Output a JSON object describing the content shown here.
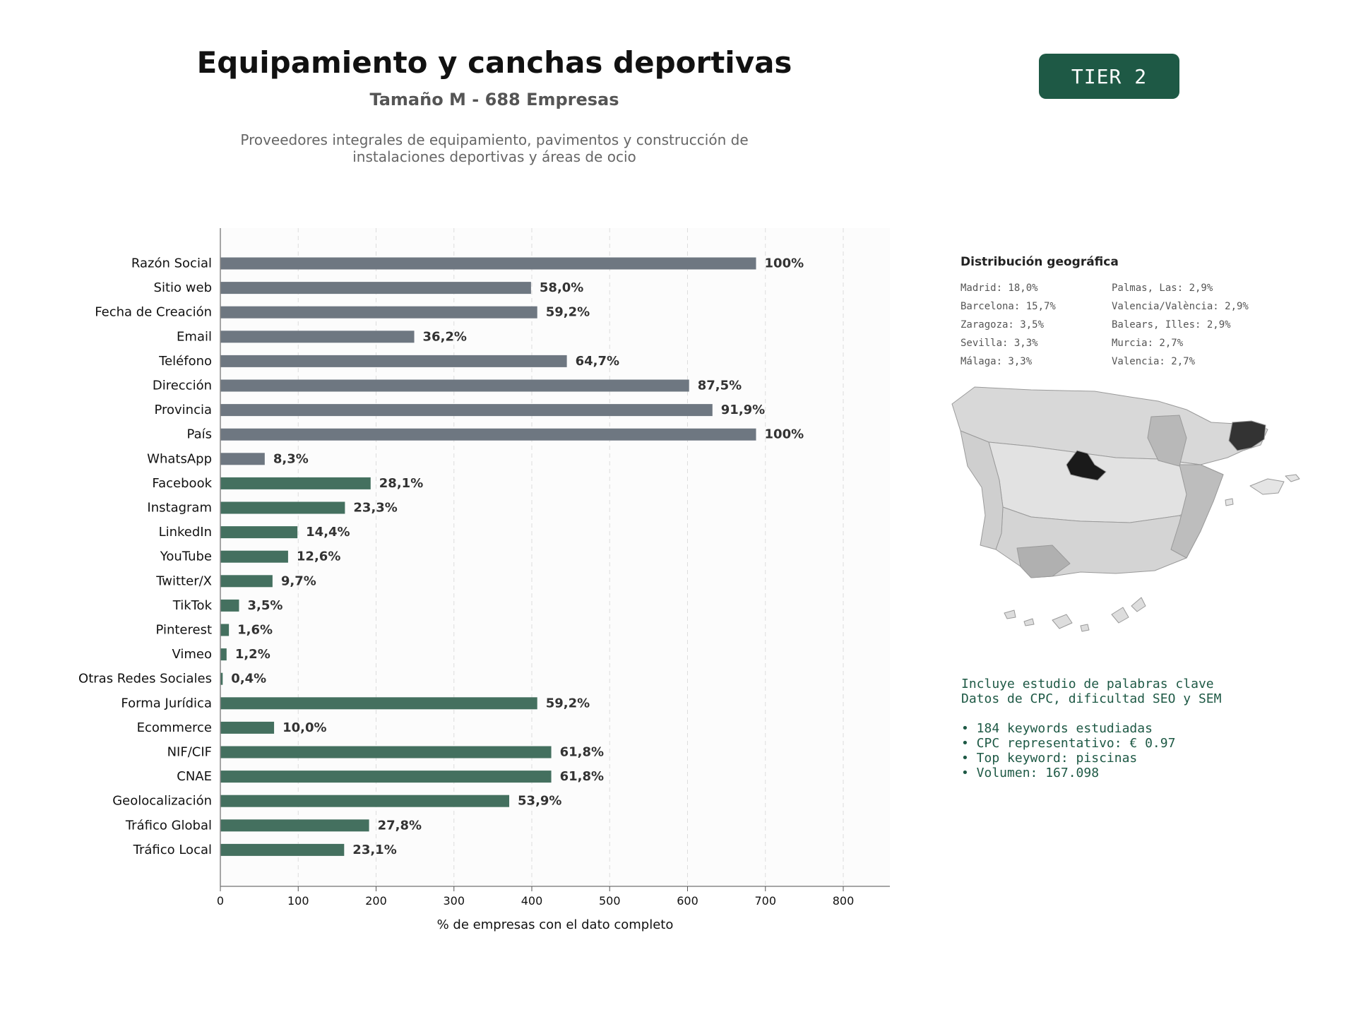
{
  "header": {
    "title": "Equipamiento y canchas deportivas",
    "subtitle": "Tamaño M - 688 Empresas",
    "description": "Proveedores integrales de equipamiento, pavimentos y construcción de instalaciones deportivas y áreas de ocio",
    "tier": "TIER 2"
  },
  "colors": {
    "base_bar": "#6e7781",
    "extra_bar": "#44705f",
    "tier_badge": "#1e5945",
    "map_highlight": "#1a1a1a"
  },
  "chart_data": {
    "type": "bar",
    "orientation": "horizontal",
    "xlabel": "% de empresas con el dato completo",
    "xlim": [
      0,
      860
    ],
    "xticks": [
      0,
      100,
      200,
      300,
      400,
      500,
      600,
      700,
      800
    ],
    "grid": "vertical dashed",
    "categories": [
      "Razón Social",
      "Sitio web",
      "Fecha de Creación",
      "Email",
      "Teléfono",
      "Dirección",
      "Provincia",
      "País",
      "WhatsApp",
      "Facebook",
      "Instagram",
      "LinkedIn",
      "YouTube",
      "Twitter/X",
      "TikTok",
      "Pinterest",
      "Vimeo",
      "Otras Redes Sociales",
      "Forma Jurídica",
      "Ecommerce",
      "NIF/CIF",
      "CNAE",
      "Geolocalización",
      "Tráfico Global",
      "Tráfico Local"
    ],
    "values": [
      688,
      399,
      407,
      249,
      445,
      602,
      632,
      688,
      57,
      193,
      160,
      99,
      87,
      67,
      24,
      11,
      8,
      3,
      407,
      69,
      425,
      425,
      371,
      191,
      159
    ],
    "labels": [
      "100%",
      "58,0%",
      "59,2%",
      "36,2%",
      "64,7%",
      "87,5%",
      "91,9%",
      "100%",
      "8,3%",
      "28,1%",
      "23,3%",
      "14,4%",
      "12,6%",
      "9,7%",
      "3,5%",
      "1,6%",
      "1,2%",
      "0,4%",
      "59,2%",
      "10,0%",
      "61,8%",
      "61,8%",
      "53,9%",
      "27,8%",
      "23,1%"
    ],
    "color_group": [
      "base",
      "base",
      "base",
      "base",
      "base",
      "base",
      "base",
      "base",
      "base",
      "extra",
      "extra",
      "extra",
      "extra",
      "extra",
      "extra",
      "extra",
      "extra",
      "extra",
      "extra",
      "extra",
      "extra",
      "extra",
      "extra",
      "extra",
      "extra"
    ]
  },
  "geo": {
    "title": "Distribución geográfica",
    "col1": [
      "Madrid: 18,0%",
      "Barcelona: 15,7%",
      "Zaragoza: 3,5%",
      "Sevilla: 3,3%",
      "Málaga: 3,3%"
    ],
    "col2": [
      "Palmas, Las: 2,9%",
      "Valencia/València: 2,9%",
      "Balears, Illes: 2,9%",
      "Murcia: 2,7%",
      "Valencia: 2,7%"
    ]
  },
  "keywords": {
    "line1": "Incluye estudio de palabras clave",
    "line2": "Datos de CPC, dificultad SEO y SEM",
    "bullets": [
      "• 184 keywords estudiadas",
      "• CPC representativo: € 0.97",
      "• Top keyword: piscinas",
      "• Volumen: 167.098"
    ]
  }
}
